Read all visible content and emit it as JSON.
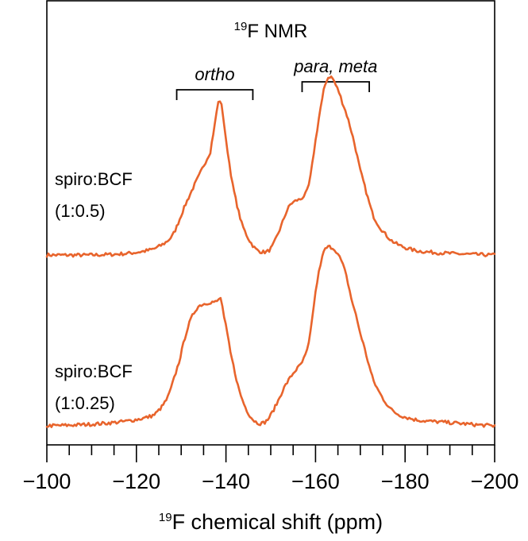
{
  "chart_data": {
    "type": "line",
    "title": {
      "sup": "19",
      "main": "F NMR"
    },
    "xlabel": {
      "sup": "19",
      "main": "F chemical shift (ppm)"
    },
    "xlim": [
      -100,
      -200
    ],
    "x_reversed": true,
    "x_major_ticks": [
      -100,
      -120,
      -140,
      -160,
      -180,
      -200
    ],
    "x_tick_labels": [
      "−100",
      "−120",
      "−140",
      "−160",
      "−180",
      "−200"
    ],
    "x_minor_step": 5,
    "y_axis_shown": false,
    "color": "#e8642c",
    "annotations": [
      {
        "text": "ortho",
        "range": [
          -129,
          -146
        ]
      },
      {
        "text": "para, meta",
        "range": [
          -157,
          -172
        ]
      }
    ],
    "series": [
      {
        "name_lines": [
          "spiro:BCF",
          "(1:0.5)"
        ],
        "x": [
          -100,
          -110,
          -118,
          -124,
          -128,
          -131,
          -134,
          -136.5,
          -137.5,
          -138.3,
          -139,
          -140,
          -141.5,
          -143.5,
          -146,
          -148,
          -150,
          -152,
          -154,
          -155.5,
          -157,
          -158.5,
          -160,
          -161.5,
          -162.5,
          -163.5,
          -164.5,
          -166,
          -168,
          -170,
          -173,
          -177,
          -182,
          -190,
          -200
        ],
        "y": [
          0.0,
          0.0,
          0.01,
          0.04,
          0.12,
          0.32,
          0.5,
          0.65,
          0.82,
          0.96,
          0.94,
          0.72,
          0.44,
          0.2,
          0.06,
          0.02,
          0.04,
          0.16,
          0.3,
          0.34,
          0.36,
          0.44,
          0.72,
          0.98,
          1.1,
          1.12,
          1.07,
          0.96,
          0.78,
          0.53,
          0.24,
          0.09,
          0.03,
          0.01,
          0.0
        ],
        "offset": 1.0
      },
      {
        "name_lines": [
          "spiro:BCF",
          "(1:0.25)"
        ],
        "x": [
          -100,
          -110,
          -118,
          -124,
          -127,
          -129.5,
          -131.5,
          -133.5,
          -135.5,
          -137.3,
          -138,
          -138.8,
          -139.6,
          -141,
          -143,
          -145,
          -147,
          -149,
          -151,
          -153,
          -155,
          -157,
          -158.5,
          -160,
          -161.5,
          -162.5,
          -163.8,
          -165,
          -166.5,
          -168,
          -170,
          -173,
          -177,
          -182,
          -190,
          -200
        ],
        "y": [
          0.0,
          0.01,
          0.03,
          0.07,
          0.18,
          0.4,
          0.62,
          0.74,
          0.77,
          0.78,
          0.78,
          0.8,
          0.68,
          0.46,
          0.22,
          0.08,
          0.02,
          0.03,
          0.12,
          0.24,
          0.33,
          0.4,
          0.52,
          0.84,
          1.06,
          1.12,
          1.12,
          1.08,
          0.98,
          0.8,
          0.58,
          0.28,
          0.1,
          0.04,
          0.02,
          0.0
        ],
        "offset": 0.0
      }
    ]
  }
}
